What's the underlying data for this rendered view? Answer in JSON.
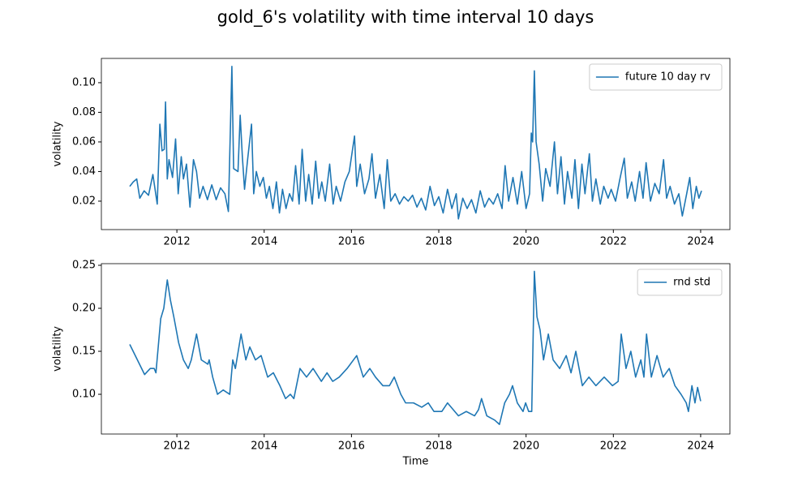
{
  "title": "gold_6's volatility with time interval 10 days",
  "chart_data": [
    {
      "type": "line",
      "ylabel": "volatility",
      "legend": "upper right",
      "xlim": [
        2010.27,
        2024.67
      ],
      "ylim": [
        0.0008,
        0.1164
      ],
      "xticks": [
        2012,
        2014,
        2016,
        2018,
        2020,
        2022,
        2024
      ],
      "yticks": [
        0.02,
        0.04,
        0.06,
        0.08,
        {
          "value": 0.1,
          "label": "0.10"
        }
      ],
      "x": [
        2010.92,
        2011.0,
        2011.08,
        2011.15,
        2011.25,
        2011.35,
        2011.45,
        2011.55,
        2011.61,
        2011.66,
        2011.71,
        2011.74,
        2011.78,
        2011.82,
        2011.9,
        2011.97,
        2012.03,
        2012.1,
        2012.15,
        2012.22,
        2012.3,
        2012.38,
        2012.45,
        2012.52,
        2012.6,
        2012.7,
        2012.8,
        2012.9,
        2013.0,
        2013.1,
        2013.18,
        2013.26,
        2013.3,
        2013.4,
        2013.45,
        2013.5,
        2013.55,
        2013.62,
        2013.71,
        2013.76,
        2013.82,
        2013.9,
        2013.98,
        2014.05,
        2014.12,
        2014.2,
        2014.28,
        2014.35,
        2014.42,
        2014.5,
        2014.58,
        2014.65,
        2014.72,
        2014.8,
        2014.87,
        2014.95,
        2015.02,
        2015.1,
        2015.18,
        2015.25,
        2015.32,
        2015.4,
        2015.5,
        2015.58,
        2015.65,
        2015.75,
        2015.85,
        2015.95,
        2016.07,
        2016.12,
        2016.2,
        2016.3,
        2016.4,
        2016.47,
        2016.55,
        2016.65,
        2016.75,
        2016.82,
        2016.9,
        2017.0,
        2017.1,
        2017.2,
        2017.3,
        2017.4,
        2017.5,
        2017.6,
        2017.7,
        2017.8,
        2017.9,
        2018.0,
        2018.1,
        2018.2,
        2018.3,
        2018.4,
        2018.45,
        2018.55,
        2018.65,
        2018.75,
        2018.85,
        2018.95,
        2019.05,
        2019.15,
        2019.25,
        2019.35,
        2019.45,
        2019.52,
        2019.6,
        2019.7,
        2019.8,
        2019.9,
        2020.0,
        2020.08,
        2020.12,
        2020.15,
        2020.19,
        2020.23,
        2020.3,
        2020.38,
        2020.45,
        2020.55,
        2020.65,
        2020.72,
        2020.8,
        2020.88,
        2020.95,
        2021.05,
        2021.12,
        2021.2,
        2021.28,
        2021.35,
        2021.45,
        2021.52,
        2021.6,
        2021.7,
        2021.78,
        2021.88,
        2021.95,
        2022.05,
        2022.15,
        2022.25,
        2022.32,
        2022.42,
        2022.5,
        2022.6,
        2022.68,
        2022.75,
        2022.85,
        2022.95,
        2023.05,
        2023.15,
        2023.22,
        2023.3,
        2023.4,
        2023.5,
        2023.58,
        2023.68,
        2023.75,
        2023.82,
        2023.9,
        2023.96,
        2024.02
      ],
      "series": [
        {
          "name": "future 10 day rv",
          "color": "#1f77b4",
          "values": [
            0.03,
            0.033,
            0.035,
            0.022,
            0.027,
            0.024,
            0.038,
            0.018,
            0.072,
            0.054,
            0.055,
            0.087,
            0.035,
            0.048,
            0.036,
            0.062,
            0.025,
            0.05,
            0.035,
            0.045,
            0.016,
            0.048,
            0.04,
            0.022,
            0.03,
            0.021,
            0.031,
            0.021,
            0.029,
            0.025,
            0.013,
            0.111,
            0.042,
            0.04,
            0.078,
            0.05,
            0.028,
            0.048,
            0.072,
            0.025,
            0.04,
            0.03,
            0.036,
            0.022,
            0.03,
            0.015,
            0.033,
            0.012,
            0.028,
            0.015,
            0.025,
            0.02,
            0.044,
            0.018,
            0.055,
            0.02,
            0.038,
            0.018,
            0.047,
            0.022,
            0.033,
            0.02,
            0.045,
            0.018,
            0.03,
            0.02,
            0.033,
            0.04,
            0.064,
            0.03,
            0.045,
            0.025,
            0.035,
            0.052,
            0.022,
            0.038,
            0.015,
            0.048,
            0.02,
            0.025,
            0.018,
            0.023,
            0.02,
            0.024,
            0.016,
            0.022,
            0.014,
            0.03,
            0.017,
            0.023,
            0.012,
            0.028,
            0.015,
            0.025,
            0.008,
            0.022,
            0.015,
            0.021,
            0.012,
            0.027,
            0.016,
            0.022,
            0.018,
            0.025,
            0.015,
            0.044,
            0.02,
            0.036,
            0.018,
            0.04,
            0.015,
            0.025,
            0.066,
            0.06,
            0.108,
            0.06,
            0.045,
            0.02,
            0.042,
            0.03,
            0.06,
            0.025,
            0.05,
            0.018,
            0.04,
            0.022,
            0.048,
            0.015,
            0.045,
            0.025,
            0.052,
            0.02,
            0.035,
            0.018,
            0.03,
            0.022,
            0.028,
            0.02,
            0.035,
            0.049,
            0.022,
            0.033,
            0.02,
            0.04,
            0.022,
            0.046,
            0.02,
            0.032,
            0.025,
            0.048,
            0.022,
            0.03,
            0.018,
            0.025,
            0.01,
            0.025,
            0.036,
            0.015,
            0.03,
            0.022,
            0.027
          ]
        }
      ]
    },
    {
      "type": "line",
      "ylabel": "volatility",
      "xlabel": "Time",
      "legend": "upper right",
      "xlim": [
        2010.27,
        2024.67
      ],
      "ylim": [
        0.0538,
        0.2519
      ],
      "xticks": [
        2012,
        2014,
        2016,
        2018,
        2020,
        2022,
        2024
      ],
      "yticks": [
        {
          "value": 0.1,
          "label": "0.10"
        },
        0.15,
        {
          "value": 0.2,
          "label": "0.20"
        },
        0.25
      ],
      "x": [
        2010.92,
        2011.26,
        2011.39,
        2011.48,
        2011.52,
        2011.63,
        2011.7,
        2011.78,
        2011.85,
        2011.93,
        2012.04,
        2012.15,
        2012.26,
        2012.33,
        2012.45,
        2012.56,
        2012.71,
        2012.74,
        2012.82,
        2012.93,
        2013.06,
        2013.21,
        2013.28,
        2013.34,
        2013.47,
        2013.58,
        2013.67,
        2013.8,
        2013.93,
        2014.08,
        2014.21,
        2014.36,
        2014.49,
        2014.6,
        2014.68,
        2014.82,
        2014.97,
        2015.12,
        2015.31,
        2015.44,
        2015.57,
        2015.72,
        2015.9,
        2016.12,
        2016.27,
        2016.42,
        2016.55,
        2016.72,
        2016.87,
        2016.98,
        2017.13,
        2017.24,
        2017.42,
        2017.61,
        2017.76,
        2017.89,
        2018.07,
        2018.2,
        2018.45,
        2018.63,
        2018.82,
        2018.91,
        2018.98,
        2019.1,
        2019.28,
        2019.39,
        2019.51,
        2019.62,
        2019.69,
        2019.8,
        2019.93,
        2019.99,
        2020.06,
        2020.13,
        2020.19,
        2020.25,
        2020.32,
        2020.4,
        2020.51,
        2020.62,
        2020.77,
        2020.92,
        2021.03,
        2021.14,
        2021.29,
        2021.44,
        2021.6,
        2021.79,
        2021.98,
        2022.11,
        2022.18,
        2022.29,
        2022.4,
        2022.51,
        2022.63,
        2022.7,
        2022.76,
        2022.87,
        2023.0,
        2023.14,
        2023.28,
        2023.41,
        2023.55,
        2023.67,
        2023.72,
        2023.8,
        2023.87,
        2023.93,
        2024.0
      ],
      "series": [
        {
          "name": "rnd std",
          "color": "#1f77b4",
          "values": [
            0.158,
            0.123,
            0.13,
            0.13,
            0.125,
            0.188,
            0.2,
            0.233,
            0.21,
            0.19,
            0.16,
            0.14,
            0.13,
            0.14,
            0.17,
            0.14,
            0.135,
            0.14,
            0.12,
            0.1,
            0.105,
            0.1,
            0.14,
            0.13,
            0.17,
            0.14,
            0.155,
            0.14,
            0.145,
            0.12,
            0.125,
            0.11,
            0.095,
            0.1,
            0.095,
            0.13,
            0.12,
            0.13,
            0.115,
            0.125,
            0.115,
            0.12,
            0.13,
            0.145,
            0.12,
            0.13,
            0.12,
            0.11,
            0.11,
            0.12,
            0.1,
            0.09,
            0.09,
            0.085,
            0.09,
            0.08,
            0.08,
            0.09,
            0.075,
            0.08,
            0.075,
            0.082,
            0.095,
            0.075,
            0.07,
            0.065,
            0.09,
            0.1,
            0.11,
            0.09,
            0.08,
            0.09,
            0.08,
            0.08,
            0.243,
            0.19,
            0.175,
            0.14,
            0.17,
            0.14,
            0.13,
            0.145,
            0.125,
            0.15,
            0.11,
            0.12,
            0.11,
            0.12,
            0.11,
            0.115,
            0.17,
            0.13,
            0.15,
            0.12,
            0.14,
            0.12,
            0.17,
            0.12,
            0.145,
            0.12,
            0.13,
            0.11,
            0.1,
            0.09,
            0.08,
            0.11,
            0.09,
            0.108,
            0.092
          ]
        }
      ]
    }
  ]
}
